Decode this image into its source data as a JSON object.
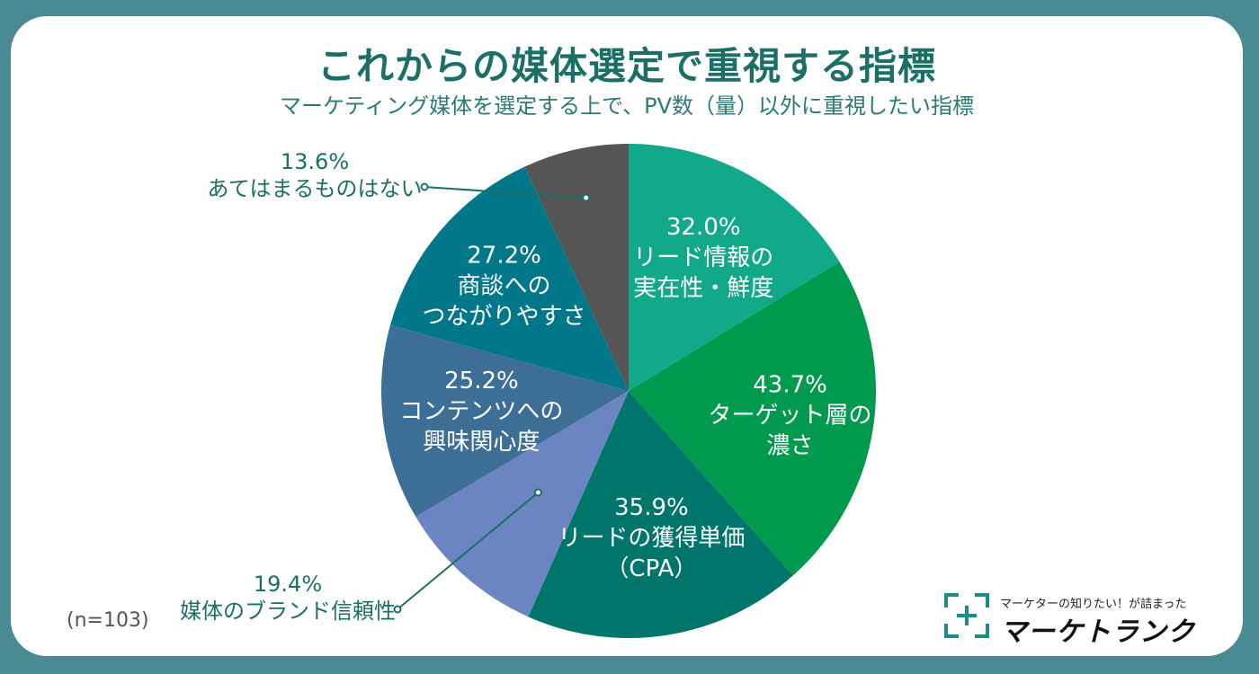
{
  "title": "これからの媒体選定で重視する指標",
  "subtitle": "マーケティング媒体を選定する上で、PV数（量）以外に重視したい指標",
  "sample_size": "(n=103)",
  "brand": {
    "tagline": "マーケターの知りたい！が詰まった",
    "name": "マーケトランク",
    "logo_icon": "bracket-logo-icon"
  },
  "chart_data": {
    "type": "pie",
    "title": "これからの媒体選定で重視する指標",
    "subtitle": "マーケティング媒体を選定する上で、PV数（量）以外に重視したい指標",
    "slices": [
      {
        "name": "リード情報の実在性・鮮度",
        "value": 32.0,
        "label": "32.0%",
        "lines": [
          "リード情報の",
          "実在性・鮮度"
        ],
        "color": "#12a98a"
      },
      {
        "name": "ターゲット層の濃さ",
        "value": 43.7,
        "label": "43.7%",
        "lines": [
          "ターゲット層の",
          "濃さ"
        ],
        "color": "#009a4f"
      },
      {
        "name": "リードの獲得単価（CPA）",
        "value": 35.9,
        "label": "35.9%",
        "lines": [
          "リードの獲得単価",
          "（CPA）"
        ],
        "color": "#00756b"
      },
      {
        "name": "媒体のブランド信頼性",
        "value": 19.4,
        "label": "19.4%",
        "lines": [
          "媒体のブランド信頼性"
        ],
        "color": "#6b84c2",
        "outside": true
      },
      {
        "name": "コンテンツへの興味関心度",
        "value": 25.2,
        "label": "25.2%",
        "lines": [
          "コンテンツへの",
          "興味関心度"
        ],
        "color": "#3d6e95"
      },
      {
        "name": "商談へのつながりやすさ",
        "value": 27.2,
        "label": "27.2%",
        "lines": [
          "商談への",
          "つながりやすさ"
        ],
        "color": "#00788a"
      },
      {
        "name": "あてはまるものはない",
        "value": 13.6,
        "label": "13.6%",
        "lines": [
          "あてはまるものはない"
        ],
        "color": "#555555",
        "outside": true
      }
    ]
  }
}
